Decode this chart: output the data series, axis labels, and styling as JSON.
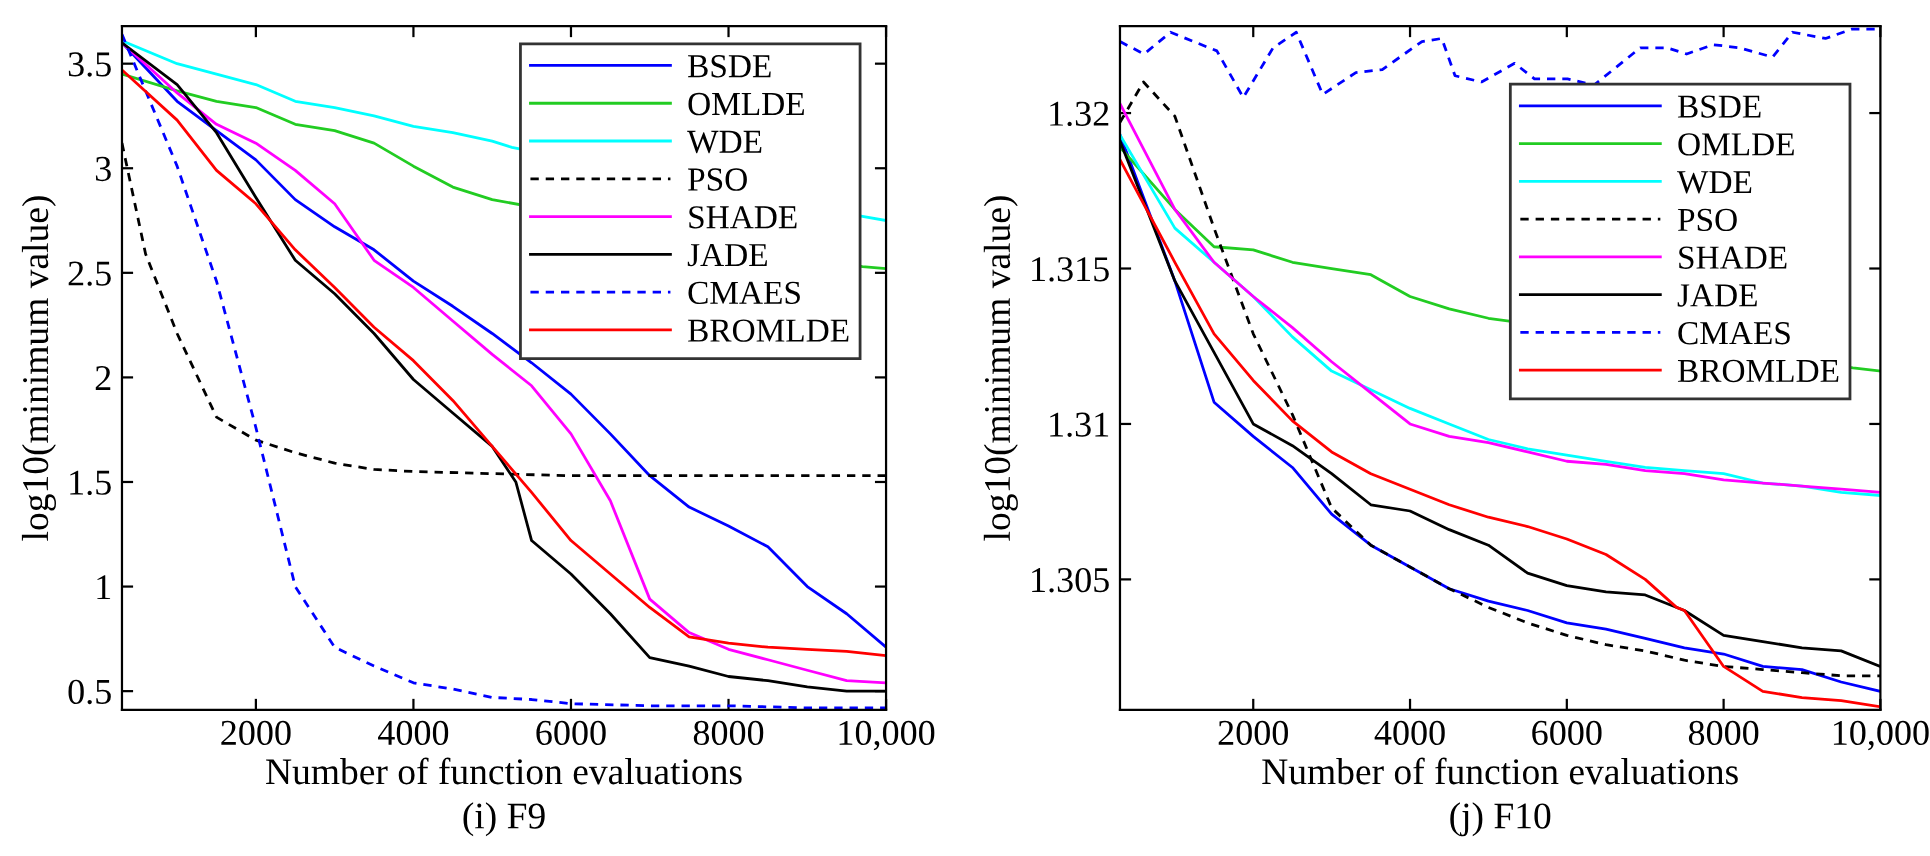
{
  "chart_data": [
    {
      "type": "line",
      "xlabel": "Number of function evaluations",
      "ylabel": "log10(minimum value)",
      "annotations": [
        "(i) F9"
      ],
      "xlim": [
        300,
        10000
      ],
      "ylim": [
        0.41,
        3.68
      ],
      "xticks": [
        2000,
        4000,
        6000,
        8000,
        {
          "value": 10000,
          "label": "10,000"
        }
      ],
      "yticks": [
        0.5,
        1,
        1.5,
        2,
        2.5,
        3,
        3.5
      ],
      "grid": false,
      "legend": "top right",
      "marker": "none",
      "series": [
        {
          "name": "BSDE",
          "color": "#0000ff",
          "line_style": "solid",
          "x": [
            300,
            1000,
            1500,
            2000,
            2500,
            3000,
            3500,
            4000,
            4500,
            5000,
            5500,
            6000,
            6500,
            7000,
            7500,
            8000,
            8500,
            9000,
            9500,
            10000
          ],
          "values": [
            3.6,
            3.32,
            3.18,
            3.04,
            2.85,
            2.72,
            2.61,
            2.46,
            2.34,
            2.21,
            2.07,
            1.92,
            1.73,
            1.53,
            1.38,
            1.29,
            1.19,
            1.0,
            0.87,
            0.71
          ]
        },
        {
          "name": "OMLDE",
          "color": "#22cc22",
          "line_style": "solid",
          "x": [
            300,
            1000,
            1500,
            2000,
            2500,
            3000,
            3500,
            4000,
            4500,
            5000,
            9700,
            10000
          ],
          "values": [
            3.45,
            3.37,
            3.32,
            3.29,
            3.21,
            3.18,
            3.12,
            3.01,
            2.91,
            2.85,
            2.53,
            2.52
          ]
        },
        {
          "name": "WDE",
          "color": "#00ffff",
          "line_style": "solid",
          "x": [
            300,
            1000,
            1500,
            2000,
            2500,
            3000,
            3500,
            4000,
            4500,
            5000,
            5250,
            9700,
            10000
          ],
          "values": [
            3.61,
            3.5,
            3.45,
            3.4,
            3.32,
            3.29,
            3.25,
            3.2,
            3.17,
            3.13,
            3.1,
            2.77,
            2.75
          ]
        },
        {
          "name": "PSO",
          "color": "#000000",
          "line_style": "dashed",
          "x": [
            300,
            600,
            1000,
            1500,
            2000,
            2500,
            3000,
            3500,
            4000,
            5000,
            6000,
            7000,
            8000,
            9000,
            10000
          ],
          "values": [
            3.12,
            2.59,
            2.21,
            1.81,
            1.7,
            1.64,
            1.59,
            1.56,
            1.55,
            1.54,
            1.53,
            1.53,
            1.53,
            1.53,
            1.53
          ]
        },
        {
          "name": "SHADE",
          "color": "#ff00ff",
          "line_style": "solid",
          "x": [
            300,
            1000,
            1500,
            2000,
            2500,
            3000,
            3500,
            4000,
            4500,
            5000,
            5500,
            6000,
            6500,
            7000,
            7500,
            8000,
            8500,
            9000,
            9500,
            10000
          ],
          "values": [
            3.6,
            3.36,
            3.21,
            3.12,
            2.99,
            2.83,
            2.56,
            2.43,
            2.27,
            2.11,
            1.96,
            1.73,
            1.41,
            0.94,
            0.78,
            0.7,
            0.65,
            0.6,
            0.55,
            0.54
          ]
        },
        {
          "name": "JADE",
          "color": "#000000",
          "line_style": "solid",
          "x": [
            300,
            1000,
            1500,
            2000,
            2500,
            3000,
            3500,
            4000,
            4500,
            5000,
            5300,
            5500,
            6000,
            6500,
            7000,
            7500,
            8000,
            8500,
            9000,
            9500,
            10000
          ],
          "values": [
            3.6,
            3.4,
            3.17,
            2.86,
            2.56,
            2.4,
            2.21,
            1.99,
            1.83,
            1.67,
            1.5,
            1.22,
            1.06,
            0.87,
            0.66,
            0.62,
            0.57,
            0.55,
            0.52,
            0.5,
            0.5
          ]
        },
        {
          "name": "CMAES",
          "color": "#0000ff",
          "line_style": "dashed",
          "x": [
            300,
            1000,
            1500,
            2000,
            2500,
            3000,
            3500,
            4000,
            4500,
            5000,
            5500,
            6000,
            7000,
            8000,
            9000,
            10000
          ],
          "values": [
            3.64,
            3.01,
            2.46,
            1.76,
            1.0,
            0.71,
            0.62,
            0.54,
            0.51,
            0.47,
            0.46,
            0.44,
            0.43,
            0.43,
            0.42,
            0.42
          ]
        },
        {
          "name": "BROMLDE",
          "color": "#ff0000",
          "line_style": "solid",
          "x": [
            300,
            1000,
            1500,
            2000,
            2500,
            3000,
            3500,
            4000,
            4500,
            5000,
            5500,
            6000,
            6500,
            7000,
            7500,
            8000,
            8500,
            9000,
            9500,
            10000
          ],
          "values": [
            3.47,
            3.23,
            2.99,
            2.83,
            2.61,
            2.43,
            2.24,
            2.08,
            1.89,
            1.67,
            1.45,
            1.22,
            1.06,
            0.9,
            0.76,
            0.73,
            0.71,
            0.7,
            0.69,
            0.67
          ]
        }
      ]
    },
    {
      "type": "line",
      "xlabel": "Number of function evaluations",
      "ylabel": "log10(minimum value)",
      "annotations": [
        "(j) F10"
      ],
      "xlim": [
        300,
        10000
      ],
      "ylim": [
        1.3008,
        1.3228
      ],
      "xticks": [
        2000,
        4000,
        6000,
        8000,
        {
          "value": 10000,
          "label": "10,000"
        }
      ],
      "yticks": [
        1.305,
        1.31,
        1.315,
        1.32
      ],
      "grid": false,
      "legend": "top right",
      "marker": "none",
      "series": [
        {
          "name": "BSDE",
          "color": "#0000ff",
          "line_style": "solid",
          "x": [
            300,
            1000,
            1500,
            2000,
            2500,
            3000,
            3500,
            4000,
            4500,
            5000,
            5500,
            6000,
            6500,
            7000,
            7500,
            8000,
            8500,
            9000,
            9500,
            10000
          ],
          "values": [
            1.3193,
            1.3146,
            1.3107,
            1.3096,
            1.3086,
            1.3071,
            1.3061,
            1.3054,
            1.3047,
            1.3043,
            1.304,
            1.3036,
            1.3034,
            1.3031,
            1.3028,
            1.3026,
            1.3022,
            1.3021,
            1.3017,
            1.3014
          ]
        },
        {
          "name": "OMLDE",
          "color": "#22cc22",
          "line_style": "solid",
          "x": [
            300,
            1000,
            1500,
            2000,
            2500,
            3000,
            3500,
            4000,
            4500,
            5000,
            9650,
            10000
          ],
          "values": [
            1.3189,
            1.3169,
            1.3157,
            1.3156,
            1.3152,
            1.315,
            1.3148,
            1.3141,
            1.3137,
            1.3134,
            1.3118,
            1.3117
          ]
        },
        {
          "name": "WDE",
          "color": "#00ffff",
          "line_style": "solid",
          "x": [
            300,
            1000,
            1500,
            2000,
            2500,
            3000,
            3500,
            4000,
            4500,
            5000,
            5500,
            6000,
            6500,
            7000,
            7500,
            8000,
            8500,
            9000,
            9500,
            10000
          ],
          "values": [
            1.3193,
            1.3163,
            1.3152,
            1.3141,
            1.3128,
            1.3117,
            1.3111,
            1.3105,
            1.31,
            1.3095,
            1.3092,
            1.309,
            1.3088,
            1.3086,
            1.3085,
            1.3084,
            1.3081,
            1.308,
            1.3078,
            1.3077
          ]
        },
        {
          "name": "PSO",
          "color": "#000000",
          "line_style": "dashed",
          "x": [
            300,
            600,
            1000,
            1500,
            2000,
            2500,
            3000,
            3500,
            4000,
            4500,
            5000,
            5500,
            6000,
            6500,
            7000,
            7500,
            8000,
            8500,
            9000,
            9500,
            10000
          ],
          "values": [
            1.3197,
            1.321,
            1.3199,
            1.3163,
            1.3129,
            1.3103,
            1.3073,
            1.3061,
            1.3054,
            1.3047,
            1.3041,
            1.3036,
            1.3032,
            1.3029,
            1.3027,
            1.3024,
            1.3022,
            1.3021,
            1.302,
            1.3019,
            1.3019
          ]
        },
        {
          "name": "SHADE",
          "color": "#ff00ff",
          "line_style": "solid",
          "x": [
            300,
            1000,
            1500,
            2000,
            2500,
            3000,
            3500,
            4000,
            4500,
            5000,
            5500,
            6000,
            6500,
            7000,
            7500,
            8000,
            8500,
            9000,
            9500,
            10000
          ],
          "values": [
            1.3203,
            1.3169,
            1.3152,
            1.3141,
            1.3131,
            1.312,
            1.311,
            1.31,
            1.3096,
            1.3094,
            1.3091,
            1.3088,
            1.3087,
            1.3085,
            1.3084,
            1.3082,
            1.3081,
            1.308,
            1.3079,
            1.3078
          ]
        },
        {
          "name": "JADE",
          "color": "#000000",
          "line_style": "solid",
          "x": [
            300,
            1000,
            1500,
            2000,
            2500,
            3000,
            3500,
            4000,
            4500,
            5000,
            5500,
            6000,
            6500,
            7000,
            7500,
            8000,
            8500,
            9000,
            9500,
            10000
          ],
          "values": [
            1.3191,
            1.3146,
            1.3123,
            1.31,
            1.3093,
            1.3084,
            1.3074,
            1.3072,
            1.3066,
            1.3061,
            1.3052,
            1.3048,
            1.3046,
            1.3045,
            1.304,
            1.3032,
            1.303,
            1.3028,
            1.3027,
            1.3022
          ]
        },
        {
          "name": "CMAES",
          "color": "#0000ff",
          "line_style": "dashed",
          "x": [
            300,
            607,
            945,
            1536,
            1873,
            2253,
            2549,
            2886,
            3308,
            3646,
            4152,
            4405,
            4574,
            4912,
            5334,
            5587,
            6009,
            6347,
            6937,
            7275,
            7528,
            7866,
            8203,
            8625,
            8878,
            9300,
            9638,
            10000
          ],
          "values": [
            1.3223,
            1.3219,
            1.3226,
            1.322,
            1.3205,
            1.3221,
            1.3226,
            1.3206,
            1.3213,
            1.3214,
            1.3223,
            1.3224,
            1.3212,
            1.321,
            1.3216,
            1.3211,
            1.3211,
            1.3209,
            1.3221,
            1.3221,
            1.3219,
            1.3222,
            1.3221,
            1.3218,
            1.3226,
            1.3224,
            1.3227,
            1.3227
          ]
        },
        {
          "name": "BROMLDE",
          "color": "#ff0000",
          "line_style": "solid",
          "x": [
            300,
            1000,
            1500,
            2000,
            2500,
            3000,
            3500,
            4000,
            4500,
            5000,
            5500,
            6000,
            6500,
            7000,
            7400,
            7500,
            8000,
            8500,
            9000,
            9500,
            10000
          ],
          "values": [
            1.3185,
            1.3152,
            1.3129,
            1.3114,
            1.3101,
            1.3091,
            1.3084,
            1.3079,
            1.3074,
            1.307,
            1.3067,
            1.3063,
            1.3058,
            1.305,
            1.3041,
            1.304,
            1.3022,
            1.3014,
            1.3012,
            1.3011,
            1.3009
          ]
        }
      ]
    }
  ]
}
